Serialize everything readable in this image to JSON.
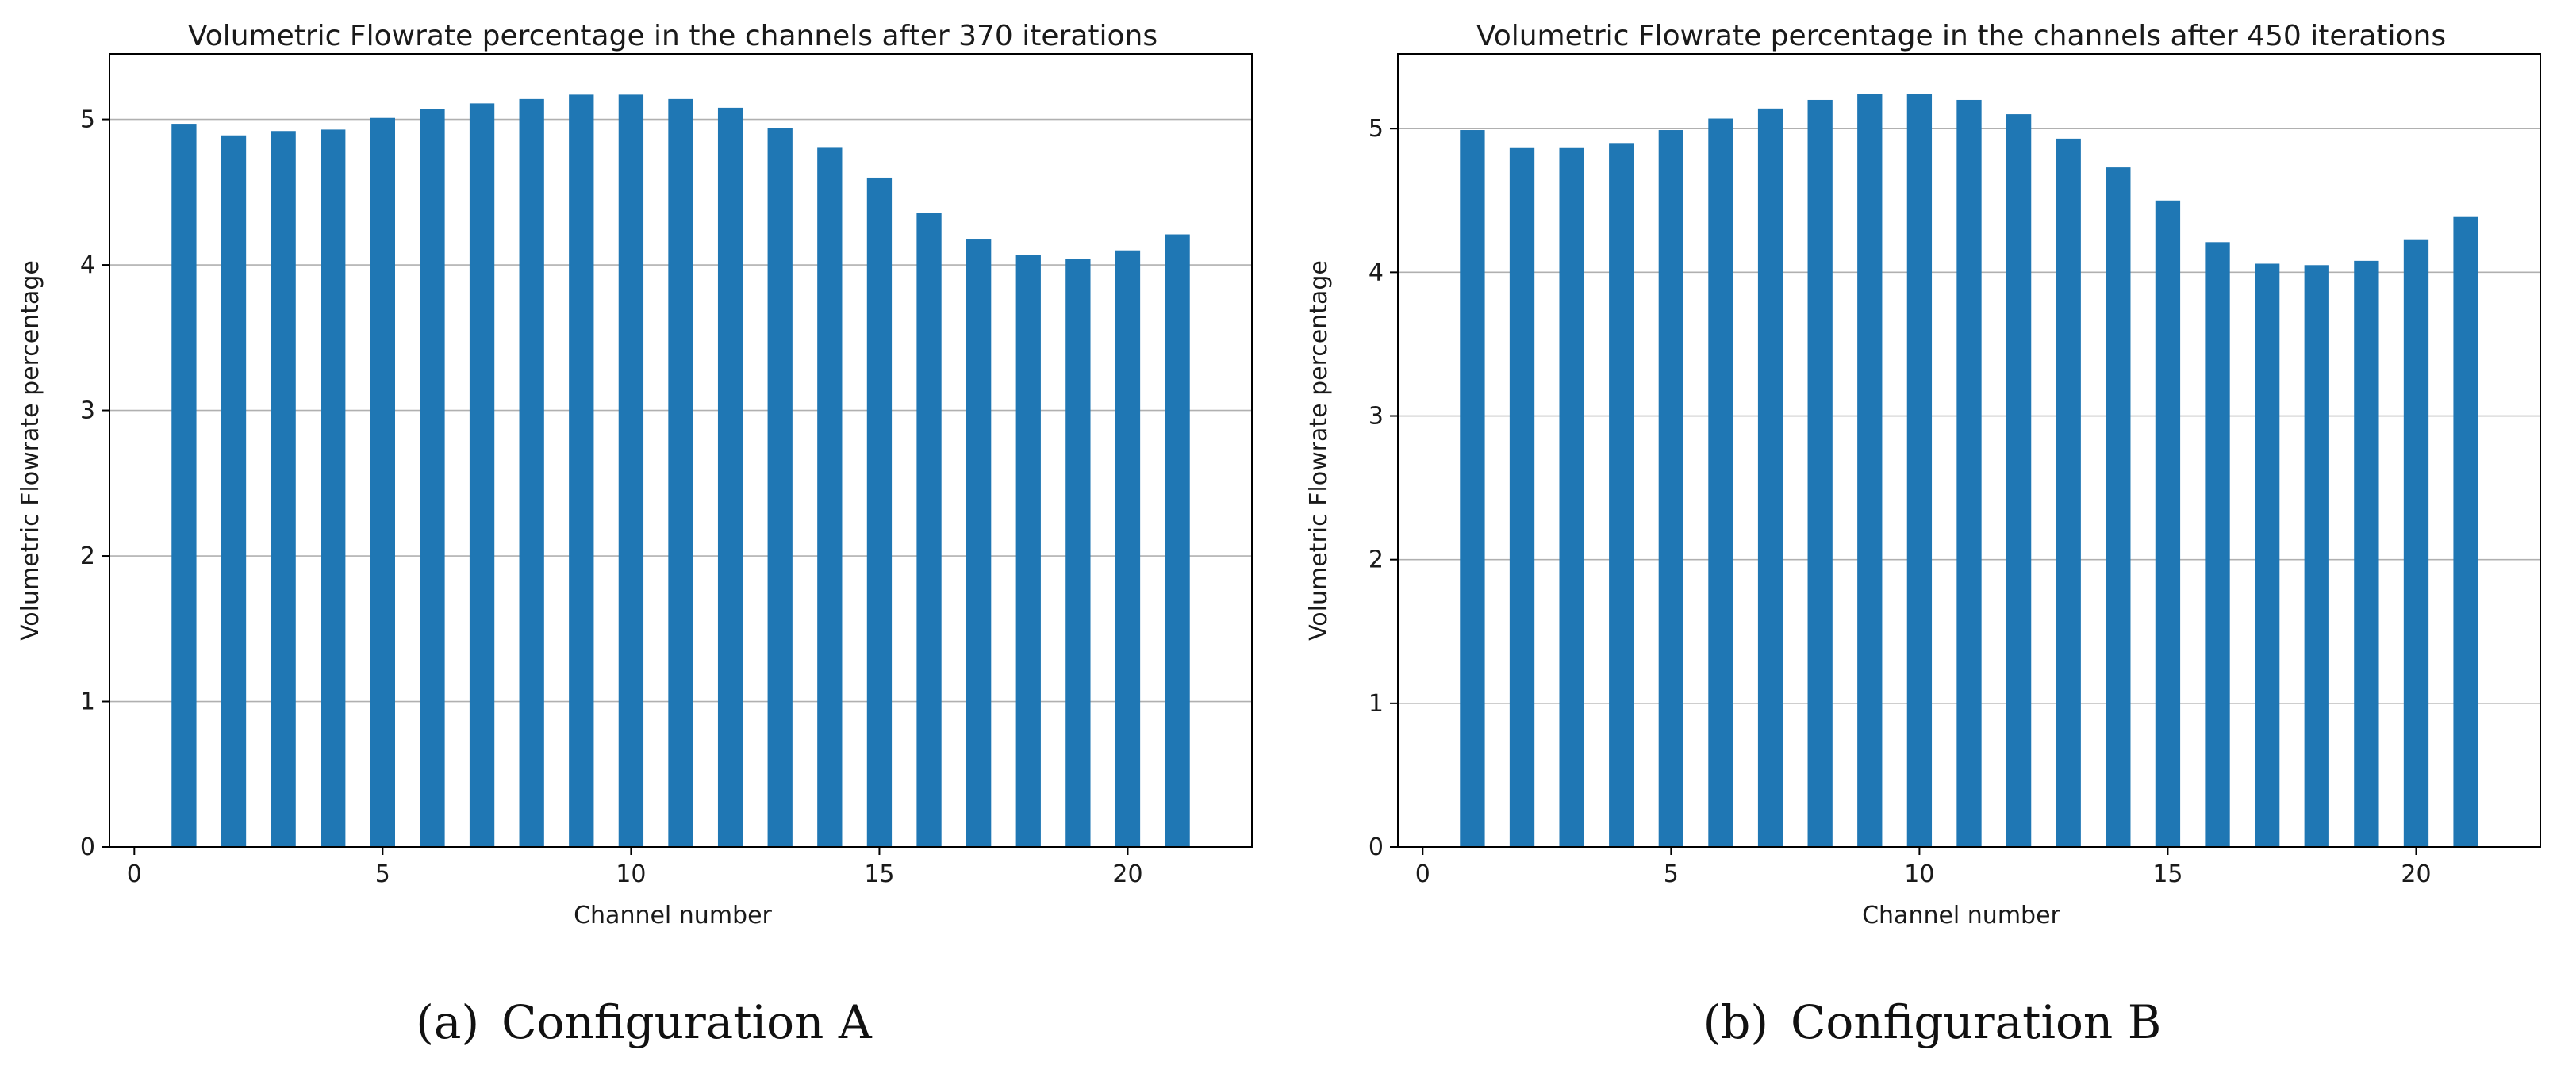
{
  "chart_data": [
    {
      "type": "bar",
      "title": "Volumetric Flowrate percentage in the channels after 370 iterations",
      "xlabel": "Channel number",
      "ylabel": "Volumetric Flowrate percentage",
      "caption_letter": "(a)",
      "caption_text": "Configuration A",
      "bar_color": "#1f77b4",
      "grid": "y",
      "xlim": [
        -0.5,
        22.5
      ],
      "ylim": [
        0,
        5.45
      ],
      "xticks": [
        0,
        5,
        10,
        15,
        20
      ],
      "yticks": [
        0,
        1,
        2,
        3,
        4,
        5
      ],
      "x": [
        1,
        2,
        3,
        4,
        5,
        6,
        7,
        8,
        9,
        10,
        11,
        12,
        13,
        14,
        15,
        16,
        17,
        18,
        19,
        20,
        21
      ],
      "values": [
        4.97,
        4.89,
        4.92,
        4.93,
        5.01,
        5.07,
        5.11,
        5.14,
        5.17,
        5.17,
        5.14,
        5.08,
        4.94,
        4.81,
        4.6,
        4.36,
        4.18,
        4.07,
        4.04,
        4.1,
        4.21
      ]
    },
    {
      "type": "bar",
      "title": "Volumetric Flowrate percentage in the channels after 450 iterations",
      "xlabel": "Channel number",
      "ylabel": "Volumetric Flowrate percentage",
      "caption_letter": "(b)",
      "caption_text": "Configuration B",
      "bar_color": "#1f77b4",
      "grid": "y",
      "xlim": [
        -0.5,
        22.5
      ],
      "ylim": [
        0,
        5.52
      ],
      "xticks": [
        0,
        5,
        10,
        15,
        20
      ],
      "yticks": [
        0,
        1,
        2,
        3,
        4,
        5
      ],
      "x": [
        1,
        2,
        3,
        4,
        5,
        6,
        7,
        8,
        9,
        10,
        11,
        12,
        13,
        14,
        15,
        16,
        17,
        18,
        19,
        20,
        21
      ],
      "values": [
        4.99,
        4.87,
        4.87,
        4.9,
        4.99,
        5.07,
        5.14,
        5.2,
        5.24,
        5.24,
        5.2,
        5.1,
        4.93,
        4.73,
        4.5,
        4.21,
        4.06,
        4.05,
        4.08,
        4.23,
        4.39
      ]
    }
  ]
}
